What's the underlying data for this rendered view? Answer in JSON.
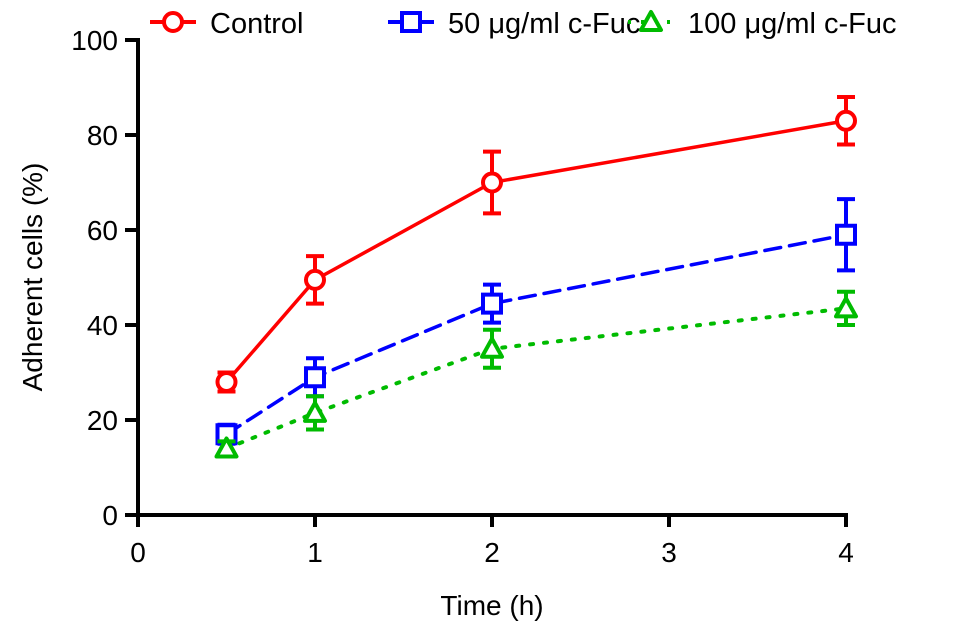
{
  "chart_data": {
    "type": "line",
    "title": "",
    "xlabel": "Time (h)",
    "ylabel": "Adherent cells (%)",
    "xlim": [
      0,
      4
    ],
    "ylim": [
      0,
      100
    ],
    "xticks": [
      0,
      1,
      2,
      3,
      4
    ],
    "xtick_labels": [
      "0",
      "1",
      "2",
      "3",
      "4"
    ],
    "yticks": [
      0,
      20,
      40,
      60,
      80,
      100
    ],
    "ytick_labels": [
      "0",
      "20",
      "40",
      "60",
      "80",
      "100"
    ],
    "grid": false,
    "legend_position": "top",
    "x": [
      0.5,
      1,
      2,
      4
    ],
    "series": [
      {
        "name": "Control",
        "color": "#ff0000",
        "marker": "circle",
        "line_style": "solid",
        "values": [
          28,
          49.5,
          70,
          83
        ],
        "errors": [
          2,
          5,
          6.5,
          5
        ]
      },
      {
        "name": "50 μg/ml c-Fuc",
        "color": "#0000ff",
        "marker": "square",
        "line_style": "dashed",
        "values": [
          17,
          29,
          44.5,
          59
        ],
        "errors": [
          2,
          4,
          4,
          7.5
        ]
      },
      {
        "name": "100 μg/ml c-Fuc",
        "color": "#00bb00",
        "marker": "triangle",
        "line_style": "dotted",
        "values": [
          14,
          21.5,
          35,
          43.5
        ],
        "errors": [
          1.5,
          3.5,
          4,
          3.5
        ]
      }
    ]
  }
}
